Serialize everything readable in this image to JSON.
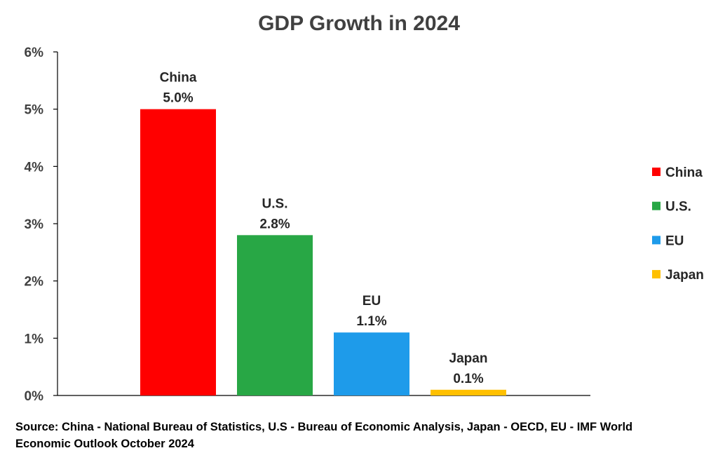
{
  "chart_data": {
    "type": "bar",
    "title": "GDP Growth in 2024",
    "xlabel": "",
    "ylabel": "",
    "categories": [
      "China",
      "U.S.",
      "EU",
      "Japan"
    ],
    "values": [
      5.0,
      2.8,
      1.1,
      0.1
    ],
    "data_labels": [
      "5.0%",
      "2.8%",
      "1.1%",
      "0.1%"
    ],
    "colors": [
      "#ff0000",
      "#28a745",
      "#1e9bea",
      "#ffc000"
    ],
    "ylim": [
      0,
      6
    ],
    "yticks": [
      0,
      1,
      2,
      3,
      4,
      5,
      6
    ],
    "ytick_labels": [
      "0%",
      "1%",
      "2%",
      "3%",
      "4%",
      "5%",
      "6%"
    ],
    "grid": false,
    "legend": {
      "placement": "right",
      "entries": [
        "China",
        "U.S.",
        "EU",
        "Japan"
      ]
    }
  },
  "source_note": "Source: China - National Bureau of Statistics, U.S - Bureau of Economic Analysis, Japan - OECD, EU - IMF World Economic Outlook October 2024"
}
